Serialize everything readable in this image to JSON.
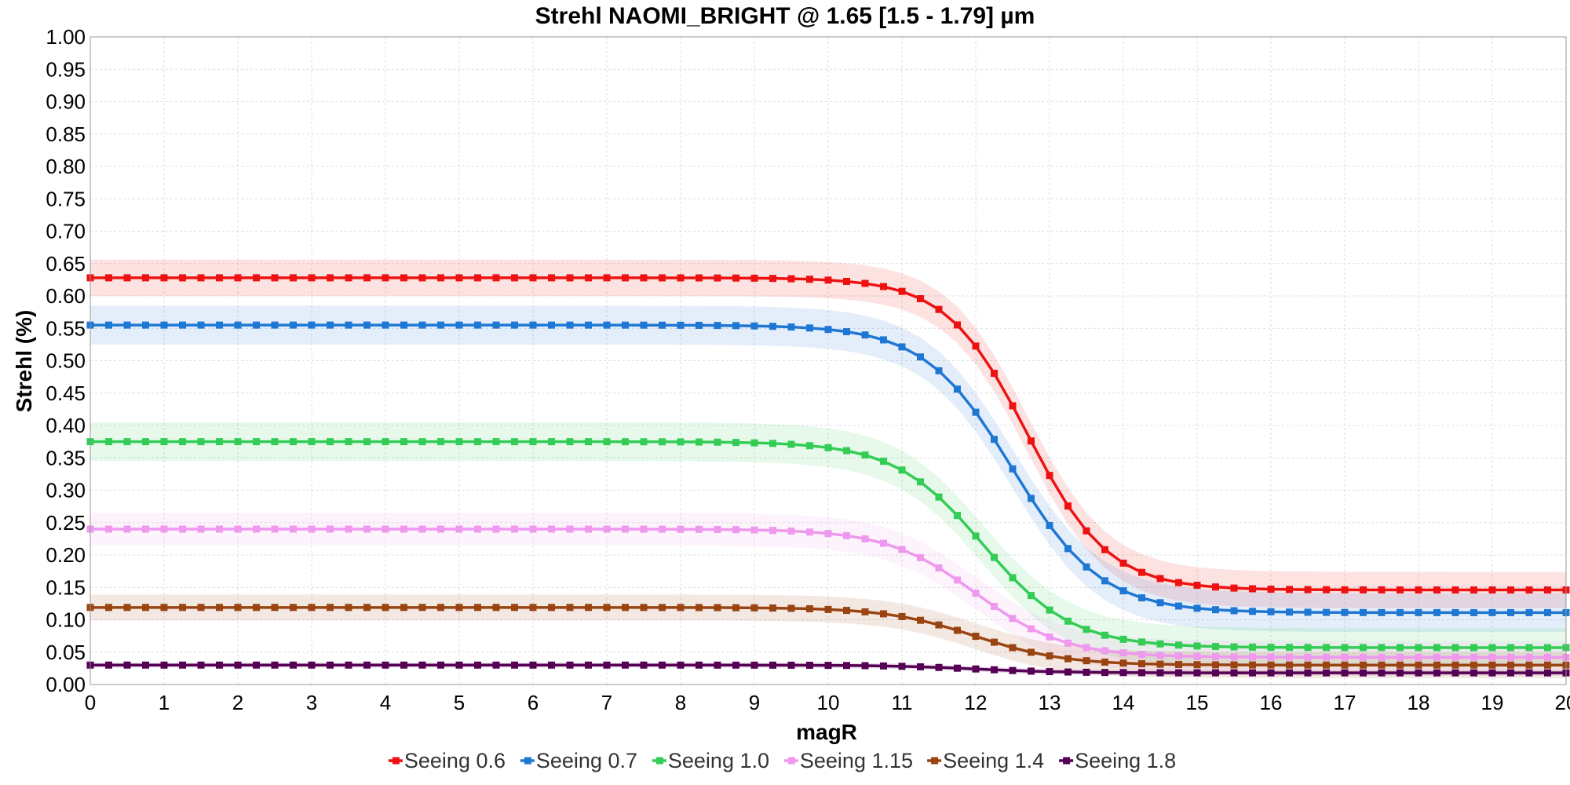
{
  "chart_data": {
    "type": "line",
    "title": "Strehl NAOMI_BRIGHT @ 1.65 [1.5 - 1.79] µm",
    "xlabel": "magR",
    "ylabel": "Strehl (%)",
    "xlim": [
      0,
      20
    ],
    "ylim": [
      0,
      1.0
    ],
    "x_ticks": [
      "0",
      "1",
      "2",
      "3",
      "4",
      "5",
      "6",
      "7",
      "8",
      "9",
      "10",
      "11",
      "12",
      "13",
      "14",
      "15",
      "16",
      "17",
      "18",
      "19",
      "20"
    ],
    "y_ticks": [
      "0.00",
      "0.05",
      "0.10",
      "0.15",
      "0.20",
      "0.25",
      "0.30",
      "0.35",
      "0.40",
      "0.45",
      "0.50",
      "0.55",
      "0.60",
      "0.65",
      "0.70",
      "0.75",
      "0.80",
      "0.85",
      "0.90",
      "0.95",
      "1.00"
    ],
    "grid": true,
    "legend_position": "bottom",
    "x_sampling": {
      "start": 0,
      "end": 20,
      "step": 0.25
    },
    "series": [
      {
        "name": "Seeing 0.6",
        "color": "#ee1111",
        "high": 0.628,
        "low": 0.146,
        "mid": 12.7,
        "width": 0.55,
        "band": 0.028
      },
      {
        "name": "Seeing 0.7",
        "color": "#1f77d4",
        "high": 0.555,
        "low": 0.111,
        "mid": 12.5,
        "width": 0.6,
        "band": 0.03
      },
      {
        "name": "Seeing 1.0",
        "color": "#33cc55",
        "high": 0.375,
        "low": 0.057,
        "mid": 12.1,
        "width": 0.6,
        "band": 0.03
      },
      {
        "name": "Seeing 1.15",
        "color": "#ee99ee",
        "high": 0.24,
        "low": 0.042,
        "mid": 12.0,
        "width": 0.6,
        "band": 0.025
      },
      {
        "name": "Seeing 1.4",
        "color": "#994411",
        "high": 0.119,
        "low": 0.03,
        "mid": 12.0,
        "width": 0.6,
        "band": 0.02
      },
      {
        "name": "Seeing 1.8",
        "color": "#550055",
        "high": 0.03,
        "low": 0.018,
        "mid": 12.0,
        "width": 0.6,
        "band": 0.004
      }
    ]
  }
}
